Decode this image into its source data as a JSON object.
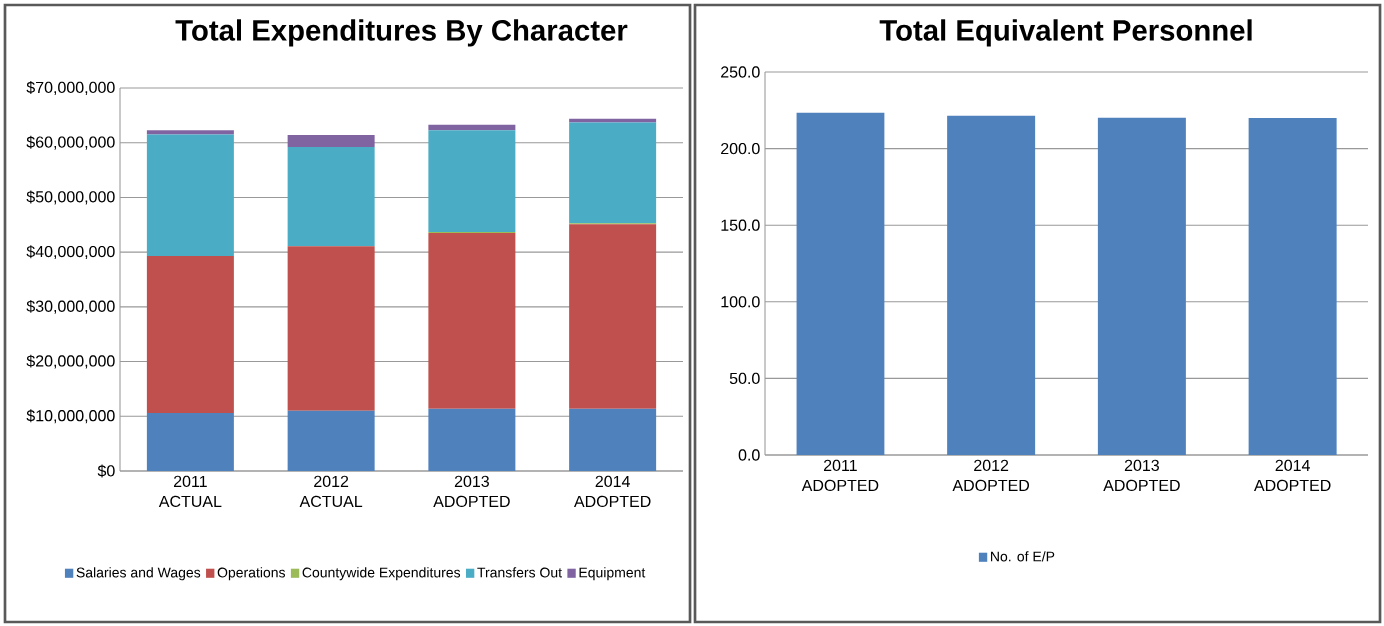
{
  "chart_data": [
    {
      "type": "bar",
      "title": "Total Expenditures By Character",
      "stacked": true,
      "categories": [
        "2011 ACTUAL",
        "2012 ACTUAL",
        "2013 ADOPTED",
        "2014 ADOPTED"
      ],
      "series": [
        {
          "name": "Salaries and Wages",
          "color": "#4f81bd",
          "values": [
            10600000,
            11000000,
            11400000,
            11400000
          ]
        },
        {
          "name": "Operations",
          "color": "#c0504d",
          "values": [
            28700000,
            30100000,
            32100000,
            33700000
          ]
        },
        {
          "name": "Countywide Expenditures",
          "color": "#9bbb59",
          "values": [
            0,
            0,
            200000,
            200000
          ]
        },
        {
          "name": "Transfers Out",
          "color": "#4bacc6",
          "values": [
            22200000,
            18100000,
            18600000,
            18400000
          ]
        },
        {
          "name": "Equipment",
          "color": "#8064a2",
          "values": [
            800000,
            2200000,
            1000000,
            700000
          ]
        }
      ],
      "ylim": [
        0,
        70000000
      ],
      "yticks": [
        {
          "value": 0,
          "label": "$0"
        },
        {
          "value": 10000000,
          "label": "$10,000,000"
        },
        {
          "value": 20000000,
          "label": "$20,000,000"
        },
        {
          "value": 30000000,
          "label": "$30,000,000"
        },
        {
          "value": 40000000,
          "label": "$40,000,000"
        },
        {
          "value": 50000000,
          "label": "$50,000,000"
        },
        {
          "value": 60000000,
          "label": "$60,000,000"
        },
        {
          "value": 70000000,
          "label": "$70,000,000"
        }
      ],
      "grid": "y",
      "legend": "bottom"
    },
    {
      "type": "bar",
      "title": "Total Equivalent Personnel",
      "categories": [
        "2011 ADOPTED",
        "2012 ADOPTED",
        "2013 ADOPTED",
        "2014 ADOPTED"
      ],
      "series": [
        {
          "name": "No. of E/P",
          "color": "#4f81bd",
          "values": [
            223.5,
            221.5,
            220.1,
            220.0
          ]
        }
      ],
      "ylim": [
        0,
        250
      ],
      "yticks": [
        {
          "value": 0,
          "label": "0.0"
        },
        {
          "value": 50,
          "label": "50.0"
        },
        {
          "value": 100,
          "label": "100.0"
        },
        {
          "value": 150,
          "label": "150.0"
        },
        {
          "value": 200,
          "label": "200.0"
        },
        {
          "value": 250,
          "label": "250.0"
        }
      ],
      "grid": "y",
      "legend": "bottom"
    }
  ]
}
